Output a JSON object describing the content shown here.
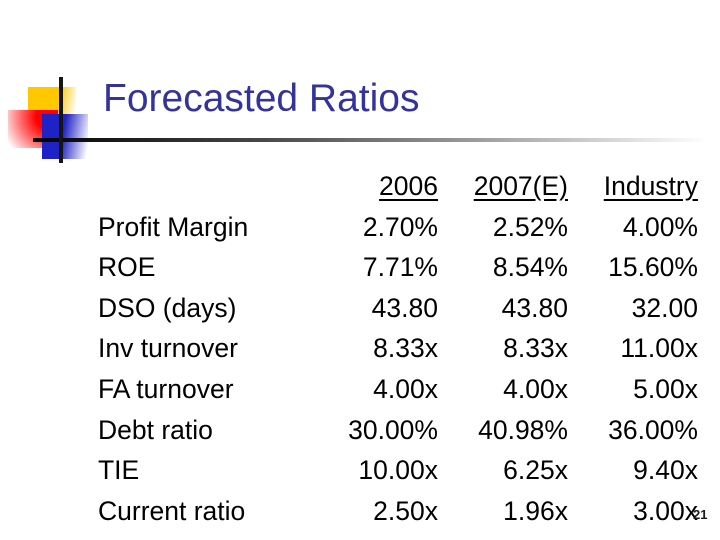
{
  "slide": {
    "title": "Forecasted Ratios",
    "slide_number": "21"
  },
  "table": {
    "headers": [
      "2006",
      "2007(E)",
      "Industry"
    ],
    "rows": [
      {
        "label": "Profit Margin",
        "values": [
          "2.70%",
          "2.52%",
          "4.00%"
        ]
      },
      {
        "label": "ROE",
        "values": [
          "7.71%",
          "8.54%",
          "15.60%"
        ]
      },
      {
        "label": "DSO (days)",
        "values": [
          "43.80",
          "43.80",
          "32.00"
        ]
      },
      {
        "label": "Inv turnover",
        "values": [
          "8.33x",
          "8.33x",
          "11.00x"
        ]
      },
      {
        "label": "FA turnover",
        "values": [
          "4.00x",
          "4.00x",
          "5.00x"
        ]
      },
      {
        "label": "Debt ratio",
        "values": [
          "30.00%",
          "40.98%",
          "36.00%"
        ]
      },
      {
        "label": "TIE",
        "values": [
          "10.00x",
          "6.25x",
          "9.40x"
        ]
      },
      {
        "label": "Current ratio",
        "values": [
          "2.50x",
          "1.96x",
          "3.00x"
        ]
      }
    ]
  },
  "colors": {
    "title_text": "#333399",
    "body_text": "#000000",
    "deco_yellow": "#FFC800",
    "deco_red": "#FF0000",
    "deco_blue": "#1F23C5",
    "rule_start": "#000000",
    "rule_end": "#FFFFFF"
  }
}
